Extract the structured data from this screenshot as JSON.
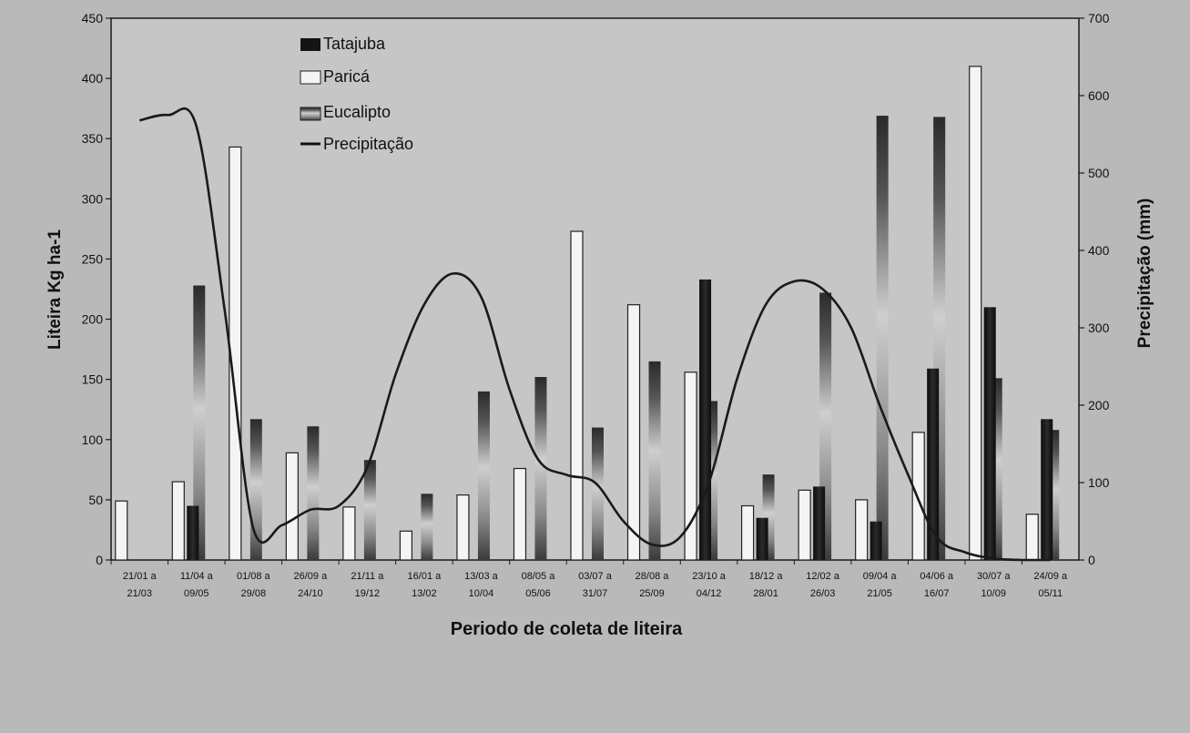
{
  "chart_data": {
    "type": "bar+line",
    "title": "",
    "xlabel": "Periodo de coleta de liteira",
    "ylabel_left": "Liteira Kg ha-1",
    "ylabel_right": "Precipitação (mm)",
    "ylim_left": [
      0,
      450
    ],
    "ylim_right": [
      0,
      700
    ],
    "yticks_left": [
      "0",
      "50",
      "100",
      "150",
      "200",
      "250",
      "300",
      "350",
      "400",
      "450"
    ],
    "yticks_right": [
      "0",
      "100",
      "200",
      "300",
      "400",
      "500",
      "600",
      "700"
    ],
    "categories": [
      {
        "line1": "21/01 a",
        "line2": "21/03"
      },
      {
        "line1": "11/04 a",
        "line2": "09/05"
      },
      {
        "line1": "01/08 a",
        "line2": "29/08"
      },
      {
        "line1": "26/09 a",
        "line2": "24/10"
      },
      {
        "line1": "21/11 a",
        "line2": "19/12"
      },
      {
        "line1": "16/01 a",
        "line2": "13/02"
      },
      {
        "line1": "13/03 a",
        "line2": "10/04"
      },
      {
        "line1": "08/05 a",
        "line2": "05/06"
      },
      {
        "line1": "03/07 a",
        "line2": "31/07"
      },
      {
        "line1": "28/08 a",
        "line2": "25/09"
      },
      {
        "line1": "23/10 a",
        "line2": "04/12"
      },
      {
        "line1": "18/12 a",
        "line2": "28/01"
      },
      {
        "line1": "12/02 a",
        "line2": "26/03"
      },
      {
        "line1": "09/04 a",
        "line2": "21/05"
      },
      {
        "line1": "04/06 a",
        "line2": "16/07"
      },
      {
        "line1": "30/07 a",
        "line2": "10/09"
      },
      {
        "line1": "24/09 a",
        "line2": "05/11"
      }
    ],
    "legend_position": "top-left",
    "series": [
      {
        "name": "Tatajuba",
        "kind": "bar",
        "style": "dark",
        "values": [
          0,
          45,
          0,
          0,
          0,
          0,
          0,
          0,
          0,
          0,
          233,
          35,
          61,
          32,
          159,
          210,
          117
        ]
      },
      {
        "name": "Paricá",
        "kind": "bar",
        "style": "light",
        "values": [
          49,
          65,
          343,
          89,
          44,
          24,
          54,
          76,
          273,
          212,
          156,
          45,
          58,
          50,
          106,
          410,
          38
        ]
      },
      {
        "name": "Eucalipto",
        "kind": "bar",
        "style": "gradient",
        "values": [
          0,
          228,
          117,
          111,
          83,
          55,
          140,
          152,
          110,
          165,
          132,
          71,
          222,
          369,
          368,
          151,
          108
        ]
      },
      {
        "name": "Precipitação",
        "kind": "line",
        "axis": "right",
        "x": [
          0,
          0.5,
          1,
          1.5,
          2,
          2.5,
          3,
          3.5,
          4,
          4.5,
          5,
          5.5,
          6,
          6.5,
          7,
          7.5,
          8,
          8.5,
          9,
          9.5,
          10,
          10.5,
          11,
          11.5,
          12,
          12.5,
          13,
          13.5,
          14,
          14.5,
          15,
          15.5,
          16
        ],
        "values": [
          568,
          575,
          560,
          320,
          40,
          45,
          65,
          70,
          120,
          240,
          330,
          370,
          340,
          220,
          130,
          110,
          100,
          50,
          20,
          30,
          100,
          235,
          330,
          360,
          350,
          300,
          200,
          110,
          30,
          10,
          2,
          0,
          0
        ]
      }
    ],
    "colors": {
      "background": "#b9b9b9",
      "tatajuba": "#141414",
      "parica_fill": "#f4f4f4",
      "eucalipto_top": "#2a2a2a",
      "eucalipto_mid": "#cfcfcf",
      "eucalipto_bottom": "#3a3a3a",
      "line": "#1a1a1a",
      "axis": "#1a1a1a"
    }
  }
}
